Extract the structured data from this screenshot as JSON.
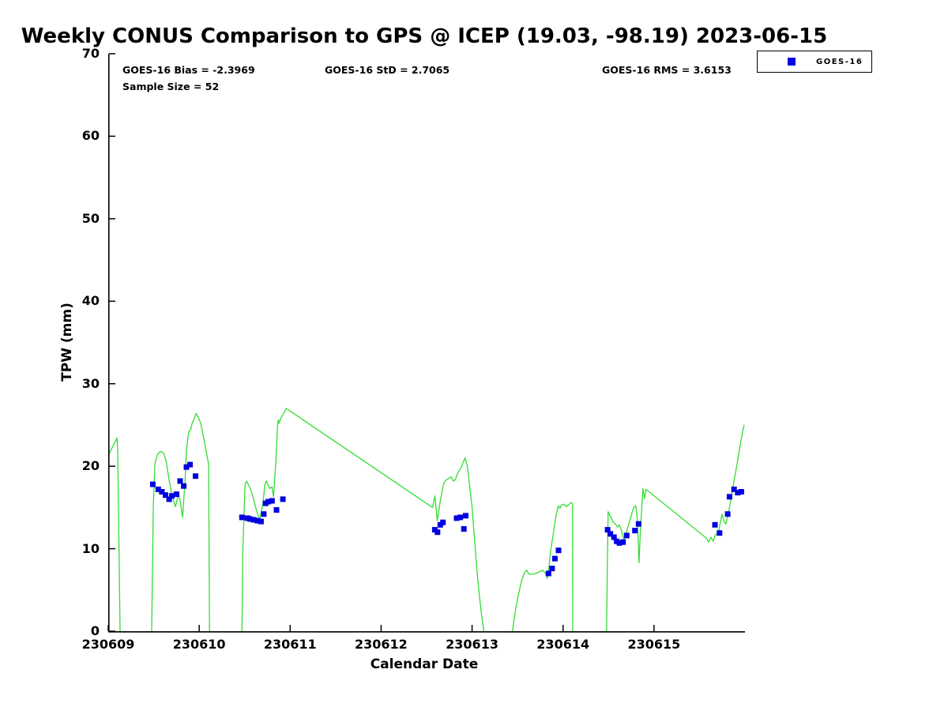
{
  "title": "Weekly CONUS Comparison to GPS @ ICEP (19.03, -98.19) 2023-06-15",
  "stats": {
    "bias": "GOES-16 Bias = -2.3969",
    "std": "GOES-16 StD = 2.7065",
    "rms": "GOES-16 RMS = 3.6153",
    "sample_size": "Sample Size = 52"
  },
  "legend": {
    "entries": [
      {
        "label": "GOES-16",
        "marker": "square",
        "color": "#0000e0"
      }
    ]
  },
  "chart_data": {
    "type": "line",
    "title": "Weekly CONUS Comparison to GPS @ ICEP (19.03, -98.19) 2023-06-15",
    "xlabel": "Calendar Date",
    "ylabel": "TPW (mm)",
    "x_tick_labels": [
      "230609",
      "230610",
      "230611",
      "230612",
      "230613",
      "230614",
      "230615"
    ],
    "y_ticks": [
      0,
      10,
      20,
      30,
      40,
      50,
      60,
      70
    ],
    "ylim": [
      0,
      70
    ],
    "xlim_days": [
      0,
      7
    ],
    "x_unit": "days since 230609 00:00 UTC",
    "grid": false,
    "legend_position": "outside-top-right",
    "colors": {
      "gps_line": "#33dd33",
      "goes16_marker": "#0000e0",
      "axis": "#000000"
    },
    "series": [
      {
        "name": "GPS",
        "type": "line",
        "color": "#33dd33",
        "segments": [
          [
            [
              0.0,
              21.3
            ],
            [
              0.05,
              22.4
            ],
            [
              0.096,
              23.4
            ],
            [
              0.104,
              22.0
            ],
            [
              0.13,
              0
            ]
          ],
          [
            [
              0.478,
              0
            ],
            [
              0.495,
              15.0
            ],
            [
              0.513,
              20.3
            ],
            [
              0.539,
              21.4
            ],
            [
              0.574,
              21.8
            ],
            [
              0.609,
              21.6
            ],
            [
              0.635,
              20.7
            ],
            [
              0.67,
              18.3
            ],
            [
              0.704,
              16.3
            ],
            [
              0.739,
              15.1
            ],
            [
              0.774,
              16.7
            ],
            [
              0.791,
              15.8
            ],
            [
              0.817,
              13.8
            ],
            [
              0.843,
              18.0
            ],
            [
              0.861,
              22.0
            ],
            [
              0.878,
              23.6
            ],
            [
              0.887,
              24.2
            ],
            [
              0.904,
              24.4
            ],
            [
              0.922,
              25.2
            ],
            [
              0.939,
              25.6
            ],
            [
              0.965,
              26.4
            ],
            [
              0.991,
              25.9
            ],
            [
              1.017,
              25.2
            ],
            [
              1.052,
              23.3
            ],
            [
              1.087,
              21.2
            ],
            [
              1.104,
              20.2
            ],
            [
              1.113,
              0
            ]
          ],
          [
            [
              1.47,
              0
            ],
            [
              1.48,
              10.0
            ],
            [
              1.504,
              17.8
            ],
            [
              1.522,
              18.2
            ],
            [
              1.565,
              17.2
            ],
            [
              1.591,
              16.3
            ],
            [
              1.626,
              14.8
            ],
            [
              1.652,
              13.9
            ],
            [
              1.67,
              13.7
            ],
            [
              1.704,
              15.8
            ],
            [
              1.722,
              17.8
            ],
            [
              1.739,
              18.2
            ],
            [
              1.774,
              17.3
            ],
            [
              1.8,
              17.5
            ],
            [
              1.817,
              16.3
            ],
            [
              1.843,
              20.5
            ],
            [
              1.861,
              25.0
            ],
            [
              1.87,
              25.6
            ],
            [
              1.878,
              25.2
            ],
            [
              1.896,
              25.8
            ],
            [
              1.922,
              26.3
            ],
            [
              1.957,
              27.0
            ],
            [
              3.565,
              15.0
            ],
            [
              3.591,
              16.4
            ],
            [
              3.6,
              15.5
            ],
            [
              3.617,
              13.4
            ],
            [
              3.652,
              15.9
            ],
            [
              3.687,
              17.9
            ],
            [
              3.713,
              18.3
            ],
            [
              3.748,
              18.6
            ],
            [
              3.774,
              18.7
            ],
            [
              3.791,
              18.2
            ],
            [
              3.817,
              18.4
            ],
            [
              3.843,
              19.2
            ],
            [
              3.878,
              19.8
            ],
            [
              3.922,
              21.0
            ],
            [
              3.948,
              20.0
            ],
            [
              3.974,
              17.5
            ],
            [
              4.0,
              15.0
            ],
            [
              4.026,
              11.2
            ],
            [
              4.052,
              7.5
            ],
            [
              4.078,
              4.5
            ],
            [
              4.104,
              2.0
            ],
            [
              4.13,
              0
            ]
          ],
          [
            [
              4.443,
              0
            ],
            [
              4.478,
              2.6
            ],
            [
              4.513,
              4.6
            ],
            [
              4.548,
              6.3
            ],
            [
              4.583,
              7.2
            ],
            [
              4.6,
              7.4
            ],
            [
              4.626,
              6.9
            ],
            [
              4.67,
              6.9
            ],
            [
              4.722,
              7.1
            ],
            [
              4.774,
              7.4
            ],
            [
              4.809,
              7.0
            ],
            [
              4.826,
              6.4
            ],
            [
              4.843,
              7.5
            ],
            [
              4.861,
              9.5
            ],
            [
              4.878,
              10.8
            ],
            [
              4.896,
              12.0
            ],
            [
              4.922,
              14.0
            ],
            [
              4.948,
              15.2
            ],
            [
              4.965,
              14.9
            ],
            [
              4.983,
              15.3
            ],
            [
              5.009,
              15.4
            ],
            [
              5.035,
              15.1
            ],
            [
              5.061,
              15.3
            ],
            [
              5.087,
              15.6
            ],
            [
              5.104,
              15.5
            ],
            [
              5.106,
              0
            ]
          ],
          [
            [
              5.478,
              0
            ],
            [
              5.487,
              8.0
            ],
            [
              5.496,
              14.5
            ],
            [
              5.513,
              14.1
            ],
            [
              5.548,
              13.3
            ],
            [
              5.583,
              12.9
            ],
            [
              5.6,
              12.6
            ],
            [
              5.617,
              12.9
            ],
            [
              5.635,
              12.5
            ],
            [
              5.652,
              11.8
            ],
            [
              5.67,
              11.0
            ],
            [
              5.687,
              11.6
            ],
            [
              5.713,
              12.6
            ],
            [
              5.739,
              13.6
            ],
            [
              5.765,
              14.6
            ],
            [
              5.783,
              15.1
            ],
            [
              5.8,
              15.2
            ],
            [
              5.817,
              13.5
            ],
            [
              5.835,
              8.3
            ],
            [
              5.852,
              12.5
            ],
            [
              5.87,
              15.8
            ],
            [
              5.878,
              17.3
            ],
            [
              5.896,
              16.1
            ],
            [
              5.913,
              17.2
            ],
            [
              6.574,
              11.3
            ],
            [
              6.6,
              10.8
            ],
            [
              6.626,
              11.4
            ],
            [
              6.652,
              10.9
            ],
            [
              6.67,
              11.6
            ],
            [
              6.696,
              11.9
            ],
            [
              6.713,
              12.3
            ],
            [
              6.73,
              13.2
            ],
            [
              6.748,
              14.2
            ],
            [
              6.774,
              13.2
            ],
            [
              6.791,
              13.0
            ],
            [
              6.817,
              14.3
            ],
            [
              6.843,
              15.8
            ],
            [
              6.87,
              17.6
            ],
            [
              6.896,
              19.2
            ],
            [
              6.922,
              20.8
            ],
            [
              6.948,
              22.6
            ],
            [
              6.974,
              24.2
            ],
            [
              6.991,
              25.0
            ]
          ]
        ]
      },
      {
        "name": "GOES-16",
        "type": "scatter",
        "marker": "square",
        "color": "#0000e0",
        "points": [
          [
            0.49,
            17.8
          ],
          [
            0.55,
            17.2
          ],
          [
            0.59,
            16.9
          ],
          [
            0.63,
            16.5
          ],
          [
            0.67,
            16.0
          ],
          [
            0.7,
            16.4
          ],
          [
            0.75,
            16.6
          ],
          [
            0.79,
            18.2
          ],
          [
            0.83,
            17.6
          ],
          [
            0.86,
            19.9
          ],
          [
            0.9,
            20.2
          ],
          [
            0.96,
            18.8
          ],
          [
            1.47,
            13.8
          ],
          [
            1.53,
            13.7
          ],
          [
            1.56,
            13.6
          ],
          [
            1.6,
            13.5
          ],
          [
            1.64,
            13.4
          ],
          [
            1.68,
            13.3
          ],
          [
            1.71,
            14.2
          ],
          [
            1.73,
            15.5
          ],
          [
            1.76,
            15.7
          ],
          [
            1.8,
            15.8
          ],
          [
            1.85,
            14.7
          ],
          [
            1.92,
            16.0
          ],
          [
            3.59,
            12.3
          ],
          [
            3.62,
            12.0
          ],
          [
            3.65,
            12.9
          ],
          [
            3.68,
            13.2
          ],
          [
            3.83,
            13.7
          ],
          [
            3.87,
            13.8
          ],
          [
            3.91,
            12.4
          ],
          [
            3.93,
            14.0
          ],
          [
            4.84,
            7.0
          ],
          [
            4.88,
            7.6
          ],
          [
            4.91,
            8.8
          ],
          [
            4.95,
            9.8
          ],
          [
            5.49,
            12.3
          ],
          [
            5.52,
            11.8
          ],
          [
            5.56,
            11.4
          ],
          [
            5.59,
            10.9
          ],
          [
            5.62,
            10.7
          ],
          [
            5.66,
            10.8
          ],
          [
            5.7,
            11.6
          ],
          [
            5.79,
            12.2
          ],
          [
            5.83,
            13.0
          ],
          [
            6.67,
            12.9
          ],
          [
            6.72,
            11.9
          ],
          [
            6.81,
            14.2
          ],
          [
            6.83,
            16.3
          ],
          [
            6.88,
            17.2
          ],
          [
            6.92,
            16.8
          ],
          [
            6.96,
            16.9
          ]
        ]
      }
    ]
  }
}
